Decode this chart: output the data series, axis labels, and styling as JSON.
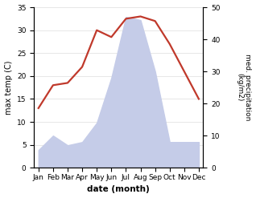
{
  "months": [
    "Jan",
    "Feb",
    "Mar",
    "Apr",
    "May",
    "Jun",
    "Jul",
    "Aug",
    "Sep",
    "Oct",
    "Nov",
    "Dec"
  ],
  "month_indices": [
    0,
    1,
    2,
    3,
    4,
    5,
    6,
    7,
    8,
    9,
    10,
    11
  ],
  "temperature": [
    13.0,
    18.0,
    18.5,
    22.0,
    30.0,
    28.5,
    32.5,
    33.0,
    32.0,
    27.0,
    21.0,
    15.0
  ],
  "precipitation": [
    5.5,
    10.0,
    7.0,
    8.0,
    14.0,
    28.0,
    47.0,
    46.0,
    30.0,
    8.0,
    8.0,
    8.0
  ],
  "temp_color": "#c0392b",
  "precip_fill_color": "#c5cce8",
  "ylim_temp": [
    0,
    35
  ],
  "ylim_precip": [
    0,
    50
  ],
  "yticks_temp": [
    0,
    5,
    10,
    15,
    20,
    25,
    30,
    35
  ],
  "yticks_precip": [
    0,
    10,
    20,
    30,
    40,
    50
  ],
  "ylabel_left": "max temp (C)",
  "ylabel_right": "med. precipitation\n(kg/m2)",
  "xlabel": "date (month)",
  "background_color": "#ffffff",
  "grid_color": "#dddddd",
  "temp_linewidth": 1.6,
  "figsize": [
    3.18,
    2.47
  ],
  "dpi": 100
}
